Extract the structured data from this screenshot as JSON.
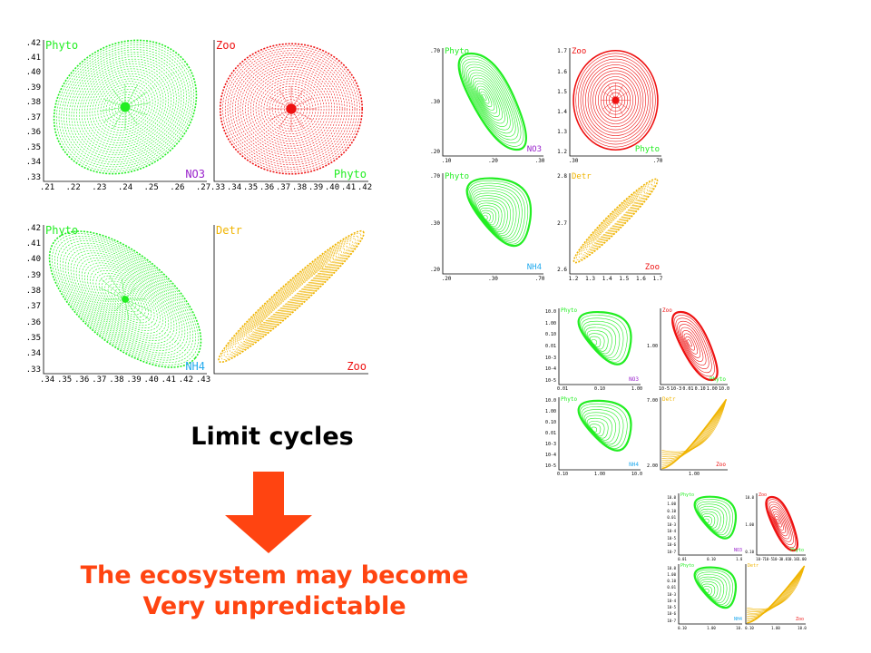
{
  "headline": "Limit cycles",
  "consequence": [
    "The ecosystem may become",
    "Very unpredictable"
  ],
  "colors": {
    "green": "#22ee22",
    "red": "#ee1111",
    "orange": "#f0b400",
    "purple": "#9922cc",
    "cyan": "#22aaee",
    "arrow": "#ff4411",
    "consequence_text": "#ff4411"
  },
  "icons": {
    "arrow": "down-arrow-icon"
  },
  "plot_groups": [
    {
      "id": "large",
      "panels": [
        {
          "y_label": "Phyto",
          "x_label": "NO3",
          "y_ticks": [
            ".42",
            ".41",
            ".40",
            ".39",
            ".38",
            ".37",
            ".36",
            ".35",
            ".34",
            ".33"
          ],
          "x_ticks": [
            ".21",
            ".22",
            ".23",
            ".24",
            ".25",
            ".26",
            ".27"
          ]
        },
        {
          "y_label": "Zoo",
          "x_label": "Phyto",
          "y_ticks": [],
          "x_ticks": [
            ".33",
            ".34",
            ".35",
            ".36",
            ".37",
            ".38",
            ".39",
            ".40",
            ".41",
            ".42"
          ]
        },
        {
          "y_label": "Phyto",
          "x_label": "NH4",
          "y_ticks": [
            ".42",
            ".41",
            ".40",
            ".39",
            ".38",
            ".37",
            ".36",
            ".35",
            ".34",
            ".33"
          ],
          "x_ticks": [
            ".34",
            ".35",
            ".36",
            ".37",
            ".38",
            ".39",
            ".40",
            ".41",
            ".42",
            ".43"
          ]
        },
        {
          "y_label": "Detr",
          "x_label": "Zoo",
          "y_ticks": [],
          "x_ticks": []
        }
      ]
    },
    {
      "id": "medium",
      "panels": [
        {
          "y_label": "Phyto",
          "x_label": "NO3",
          "y_ticks": [
            ".70",
            ".30",
            ".20"
          ],
          "x_ticks": [
            ".10",
            ".20",
            ".30"
          ]
        },
        {
          "y_label": "Zoo",
          "x_label": "Phyto",
          "y_ticks": [
            "1.7",
            "1.6",
            "1.5",
            "1.4",
            "1.3",
            "1.2"
          ],
          "x_ticks": [
            ".30",
            ".70"
          ]
        },
        {
          "y_label": "Phyto",
          "x_label": "NH4",
          "y_ticks": [
            ".70",
            ".30",
            ".20"
          ],
          "x_ticks": [
            ".20",
            ".30",
            ".70"
          ]
        },
        {
          "y_label": "Detr",
          "x_label": "Zoo",
          "y_ticks": [
            "2.8",
            "2.7",
            "2.6"
          ],
          "x_ticks": [
            "1.2",
            "1.3",
            "1.4",
            "1.5",
            "1.6",
            "1.7"
          ]
        }
      ]
    },
    {
      "id": "small",
      "panels": [
        {
          "y_label": "Phyto",
          "x_label": "NO3",
          "y_ticks": [
            "10.0",
            "1.00",
            "0.10",
            "0.01",
            "10-3",
            "10-4",
            "10-5"
          ],
          "x_ticks": [
            "0.01",
            "0.10",
            "1.00"
          ]
        },
        {
          "y_label": "Zoo",
          "x_label": "Phyto",
          "y_ticks": [
            "1.00"
          ],
          "x_ticks": [
            "10-5",
            "10-3",
            "0.01",
            "0.10",
            "1.00",
            "10.0"
          ]
        },
        {
          "y_label": "Phyto",
          "x_label": "NH4",
          "y_ticks": [
            "10.0",
            "1.00",
            "0.10",
            "0.01",
            "10-3",
            "10-4",
            "10-5"
          ],
          "x_ticks": [
            "0.10",
            "1.00",
            "10.0"
          ]
        },
        {
          "y_label": "Detr",
          "x_label": "Zoo",
          "y_ticks": [
            "7.00",
            "2.00"
          ],
          "x_ticks": [
            "1.00"
          ]
        }
      ]
    },
    {
      "id": "tiny",
      "panels": [
        {
          "y_label": "Phyto",
          "x_label": "NO3",
          "y_ticks": [
            "10.0",
            "1.00",
            "0.10",
            "0.01",
            "10-3",
            "10-4",
            "10-5",
            "10-6",
            "10-7"
          ],
          "x_ticks": [
            "0.01",
            "0.10",
            "1.00"
          ]
        },
        {
          "y_label": "Zoo",
          "x_label": "Phyto",
          "y_ticks": [
            "10.0",
            "1.00",
            "0.10"
          ],
          "x_ticks": [
            "10-7",
            "10-5",
            "10-3",
            "0.01",
            "0.10",
            "1.00"
          ]
        },
        {
          "y_label": "Phyto",
          "x_label": "NH4",
          "y_ticks": [
            "10.0",
            "1.00",
            "0.10",
            "0.01",
            "10-3",
            "10-4",
            "10-5",
            "10-6",
            "10-7"
          ],
          "x_ticks": [
            "0.10",
            "1.00",
            "10.0"
          ]
        },
        {
          "y_label": "Detr",
          "x_label": "Zoo",
          "y_ticks": [],
          "x_ticks": [
            "0.10",
            "1.00",
            "10.0"
          ]
        }
      ]
    }
  ]
}
